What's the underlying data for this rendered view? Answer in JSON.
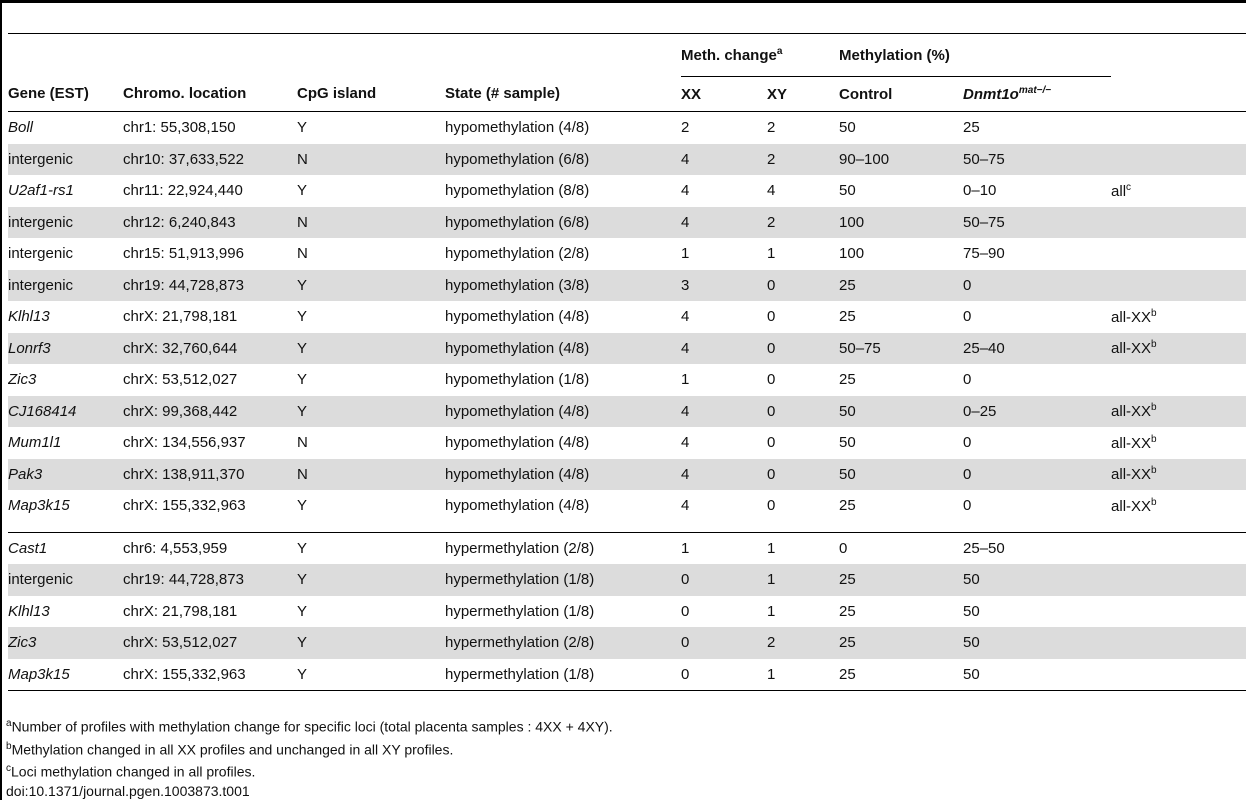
{
  "header": {
    "gene": "Gene (EST)",
    "location": "Chromo. location",
    "cpg": "CpG island",
    "state": "State (# sample)",
    "meth_change": "Meth. change",
    "meth_change_sup": "a",
    "methylation": "Methylation (%)",
    "xx": "XX",
    "xy": "XY",
    "control": "Control",
    "dnmt": "Dnmt1o",
    "dnmt_sup": "mat−/−"
  },
  "rows_hypo": [
    {
      "gene": "Boll",
      "italic": true,
      "loc": "chr1: 55,308,150",
      "cpg": "Y",
      "state": "hypomethylation (4/8)",
      "xx": "2",
      "xy": "2",
      "control": "50",
      "dnmt": "25",
      "note": "",
      "note_sup": ""
    },
    {
      "gene": "intergenic",
      "italic": false,
      "loc": "chr10: 37,633,522",
      "cpg": "N",
      "state": "hypomethylation (6/8)",
      "xx": "4",
      "xy": "2",
      "control": "90–100",
      "dnmt": "50–75",
      "note": "",
      "note_sup": ""
    },
    {
      "gene": "U2af1-rs1",
      "italic": true,
      "loc": "chr11: 22,924,440",
      "cpg": "Y",
      "state": "hypomethylation (8/8)",
      "xx": "4",
      "xy": "4",
      "control": "50",
      "dnmt": "0–10",
      "note": "all",
      "note_sup": "c"
    },
    {
      "gene": "intergenic",
      "italic": false,
      "loc": "chr12: 6,240,843",
      "cpg": "N",
      "state": "hypomethylation (6/8)",
      "xx": "4",
      "xy": "2",
      "control": "100",
      "dnmt": "50–75",
      "note": "",
      "note_sup": ""
    },
    {
      "gene": "intergenic",
      "italic": false,
      "loc": "chr15: 51,913,996",
      "cpg": "N",
      "state": "hypomethylation (2/8)",
      "xx": "1",
      "xy": "1",
      "control": "100",
      "dnmt": "75–90",
      "note": "",
      "note_sup": ""
    },
    {
      "gene": "intergenic",
      "italic": false,
      "loc": "chr19: 44,728,873",
      "cpg": "Y",
      "state": "hypomethylation (3/8)",
      "xx": "3",
      "xy": "0",
      "control": "25",
      "dnmt": "0",
      "note": "",
      "note_sup": ""
    },
    {
      "gene": "Klhl13",
      "italic": true,
      "loc": "chrX: 21,798,181",
      "cpg": "Y",
      "state": "hypomethylation (4/8)",
      "xx": "4",
      "xy": "0",
      "control": "25",
      "dnmt": "0",
      "note": "all-XX",
      "note_sup": "b"
    },
    {
      "gene": "Lonrf3",
      "italic": true,
      "loc": "chrX: 32,760,644",
      "cpg": "Y",
      "state": "hypomethylation (4/8)",
      "xx": "4",
      "xy": "0",
      "control": "50–75",
      "dnmt": "25–40",
      "note": "all-XX",
      "note_sup": "b"
    },
    {
      "gene": "Zic3",
      "italic": true,
      "loc": "chrX: 53,512,027",
      "cpg": "Y",
      "state": "hypomethylation (1/8)",
      "xx": "1",
      "xy": "0",
      "control": "25",
      "dnmt": "0",
      "note": "",
      "note_sup": ""
    },
    {
      "gene": "CJ168414",
      "italic": true,
      "loc": "chrX: 99,368,442",
      "cpg": "Y",
      "state": "hypomethylation (4/8)",
      "xx": "4",
      "xy": "0",
      "control": "50",
      "dnmt": "0–25",
      "note": "all-XX",
      "note_sup": "b"
    },
    {
      "gene": "Mum1l1",
      "italic": true,
      "loc": "chrX: 134,556,937",
      "cpg": "N",
      "state": "hypomethylation (4/8)",
      "xx": "4",
      "xy": "0",
      "control": "50",
      "dnmt": "0",
      "note": "all-XX",
      "note_sup": "b"
    },
    {
      "gene": "Pak3",
      "italic": true,
      "loc": "chrX: 138,911,370",
      "cpg": "N",
      "state": "hypomethylation (4/8)",
      "xx": "4",
      "xy": "0",
      "control": "50",
      "dnmt": "0",
      "note": "all-XX",
      "note_sup": "b"
    },
    {
      "gene": "Map3k15",
      "italic": true,
      "loc": "chrX: 155,332,963",
      "cpg": "Y",
      "state": "hypomethylation (4/8)",
      "xx": "4",
      "xy": "0",
      "control": "25",
      "dnmt": "0",
      "note": "all-XX",
      "note_sup": "b"
    }
  ],
  "rows_hyper": [
    {
      "gene": "Cast1",
      "italic": true,
      "loc": "chr6: 4,553,959",
      "cpg": "Y",
      "state": "hypermethylation (2/8)",
      "xx": "1",
      "xy": "1",
      "control": "0",
      "dnmt": "25–50",
      "note": "",
      "note_sup": ""
    },
    {
      "gene": "intergenic",
      "italic": false,
      "loc": "chr19: 44,728,873",
      "cpg": "Y",
      "state": "hypermethylation (1/8)",
      "xx": "0",
      "xy": "1",
      "control": "25",
      "dnmt": "50",
      "note": "",
      "note_sup": ""
    },
    {
      "gene": "Klhl13",
      "italic": true,
      "loc": "chrX: 21,798,181",
      "cpg": "Y",
      "state": "hypermethylation (1/8)",
      "xx": "0",
      "xy": "1",
      "control": "25",
      "dnmt": "50",
      "note": "",
      "note_sup": ""
    },
    {
      "gene": "Zic3",
      "italic": true,
      "loc": "chrX: 53,512,027",
      "cpg": "Y",
      "state": "hypermethylation (2/8)",
      "xx": "0",
      "xy": "2",
      "control": "25",
      "dnmt": "50",
      "note": "",
      "note_sup": ""
    },
    {
      "gene": "Map3k15",
      "italic": true,
      "loc": "chrX: 155,332,963",
      "cpg": "Y",
      "state": "hypermethylation (1/8)",
      "xx": "0",
      "xy": "1",
      "control": "25",
      "dnmt": "50",
      "note": "",
      "note_sup": ""
    }
  ],
  "footnotes": [
    {
      "sup": "a",
      "text": "Number of profiles with methylation change for specific loci (total placenta samples : 4XX + 4XY)."
    },
    {
      "sup": "b",
      "text": "Methylation changed in all XX profiles and unchanged in all XY profiles."
    },
    {
      "sup": "c",
      "text": "Loci methylation changed in all profiles."
    }
  ],
  "doi": "doi:10.1371/journal.pgen.1003873.t001",
  "colors": {
    "shade": "#dcdcdc",
    "rule": "#000000"
  }
}
